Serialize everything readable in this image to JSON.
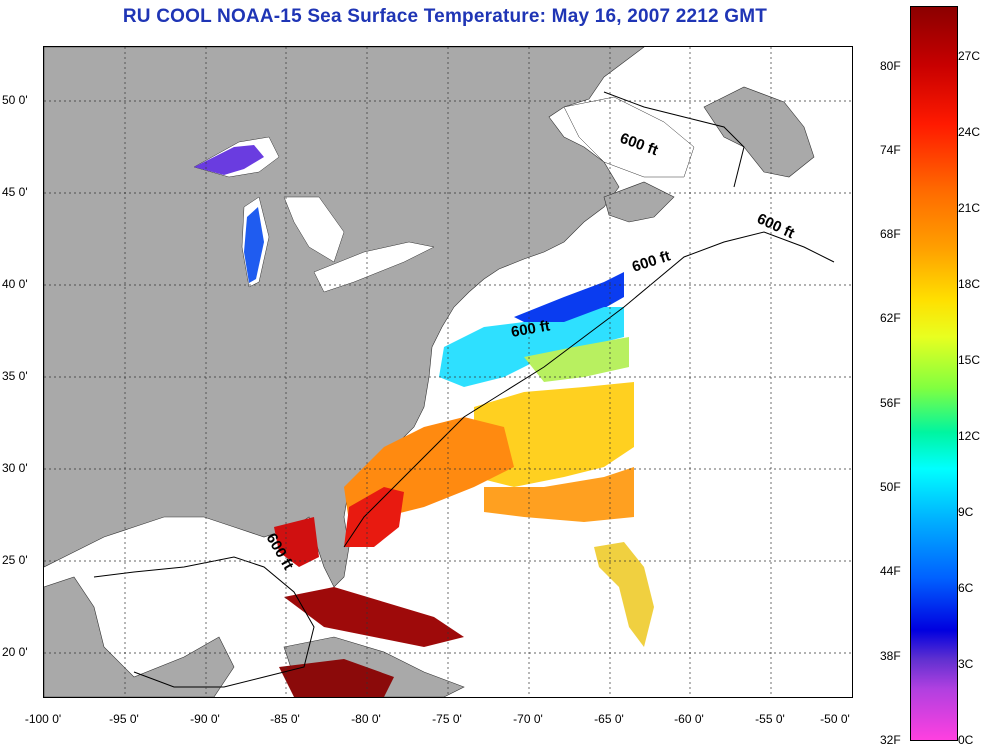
{
  "title": "RU COOL  NOAA-15  Sea Surface Temperature:  May 16, 2007 2212 GMT",
  "map": {
    "x_ticks": [
      "-100 0'",
      "-95 0'",
      "-90 0'",
      "-85 0'",
      "-80 0'",
      "-75 0'",
      "-70 0'",
      "-65 0'",
      "-60 0'",
      "-55 0'",
      "-50 0'"
    ],
    "y_ticks": [
      "50 0'",
      "45 0'",
      "40 0'",
      "35 0'",
      "30 0'",
      "25 0'",
      "20 0'"
    ],
    "contour_labels": [
      "600 ft",
      "600 ft",
      "600 ft",
      "600 ft",
      "600 ft"
    ],
    "land_color": "#a9a9a9",
    "gridlines": "dotted"
  },
  "colorbar": {
    "fahrenheit": [
      "80F",
      "74F",
      "68F",
      "62F",
      "56F",
      "50F",
      "44F",
      "38F",
      "32F"
    ],
    "celsius": [
      "27C",
      "24C",
      "21C",
      "18C",
      "15C",
      "12C",
      "9C",
      "6C",
      "3C",
      "0C"
    ]
  },
  "icons": [
    "colorbar-gradient"
  ]
}
